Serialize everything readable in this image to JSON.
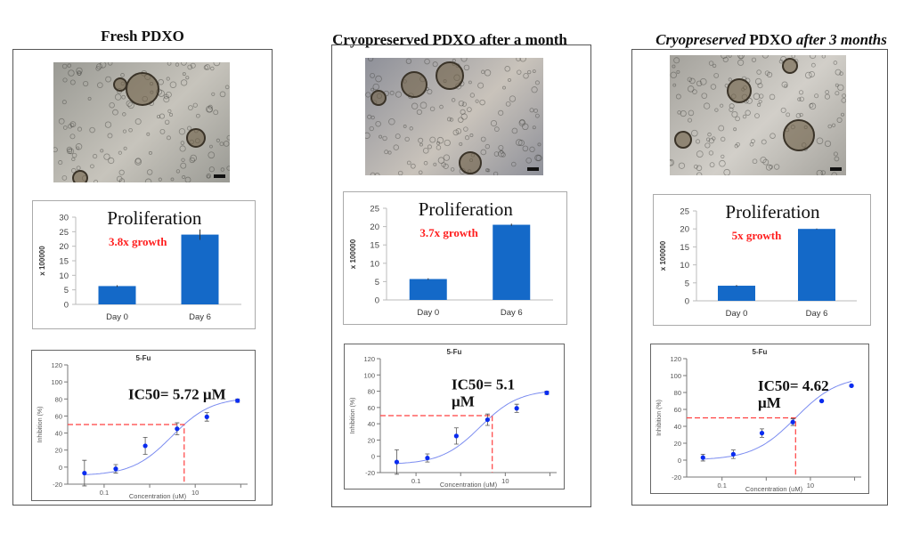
{
  "colors": {
    "bar": "#1469c8",
    "growth": "#ff2020",
    "dash": "#ff4040",
    "point": "#0a2cf0",
    "curve": "#7b8cf0"
  },
  "panels": [
    {
      "title_parts": [
        {
          "text": "Fresh PDXO",
          "italic": false
        }
      ],
      "micro_tint": [
        "#9a9a94",
        "#c7c4bc"
      ],
      "proliferation": {
        "type": "bar",
        "title": "Proliferation",
        "growth_label": "3.8x growth",
        "ylabel": "x 100000",
        "categories": [
          "Day 0",
          "Day 6"
        ],
        "values": [
          6.3,
          24
        ],
        "errors": [
          0.3,
          1.8
        ],
        "ylim": [
          0,
          30
        ],
        "yticks": [
          0,
          5,
          10,
          15,
          20,
          25,
          30
        ]
      },
      "ic50": {
        "type": "scatter",
        "title": "5-Fu",
        "xlabel": "Concentration (uM)",
        "ylabel": "Inhibition (%)",
        "label_lines": [
          "IC50= 5.72 µM"
        ],
        "ic50_value": 5.72,
        "x": [
          0.037,
          0.18,
          0.8,
          4,
          18,
          85
        ],
        "y": [
          -7,
          -2,
          25,
          45,
          59,
          78
        ],
        "errors": [
          15,
          5,
          10,
          7,
          5,
          2
        ],
        "fit": {
          "bottom": -10,
          "top": 82,
          "c": 3.05,
          "hill": 1
        },
        "xscale": "log",
        "xticklabels": [
          "0.1",
          "10"
        ],
        "ylim": [
          -20,
          120
        ],
        "yticks": [
          -20,
          0,
          20,
          40,
          60,
          80,
          100,
          120
        ]
      }
    },
    {
      "title_parts": [
        {
          "text": "Cryopreserved PDXO after a month",
          "italic": false
        }
      ],
      "micro_tint": [
        "#8e9099",
        "#c9c3bb"
      ],
      "proliferation": {
        "type": "bar",
        "title": "Proliferation",
        "growth_label": "3.7x growth",
        "ylabel": "x 100000",
        "categories": [
          "Day 0",
          "Day 6"
        ],
        "values": [
          5.7,
          20.5
        ],
        "errors": [
          0.2,
          0.3
        ],
        "ylim": [
          0,
          25
        ],
        "yticks": [
          0,
          5,
          10,
          15,
          20,
          25
        ]
      },
      "ic50": {
        "type": "scatter",
        "title": "5-Fu",
        "xlabel": "Concentration (uM)",
        "ylabel": "Inhibition (%)",
        "label_lines": [
          "IC50= 5.1",
          "µM"
        ],
        "ic50_value": 5.1,
        "x": [
          0.037,
          0.18,
          0.8,
          4,
          18,
          85
        ],
        "y": [
          -7,
          -2,
          25,
          45,
          59,
          78
        ],
        "errors": [
          15,
          5,
          10,
          7,
          5,
          2
        ],
        "fit": {
          "bottom": -10,
          "top": 82,
          "c": 2.72,
          "hill": 1
        },
        "xscale": "log",
        "xticklabels": [
          "0.1",
          "10"
        ],
        "ylim": [
          -20,
          120
        ],
        "yticks": [
          -20,
          0,
          20,
          40,
          60,
          80,
          100,
          120
        ]
      }
    },
    {
      "title_parts": [
        {
          "text": "Cryopreserved",
          "italic": true
        },
        {
          "text": " PDXO ",
          "italic": false
        },
        {
          "text": "after 3 months",
          "italic": true
        }
      ],
      "micro_tint": [
        "#a4a29c",
        "#d2cfc9"
      ],
      "proliferation": {
        "type": "bar",
        "title": "Proliferation",
        "growth_label": "5x growth",
        "ylabel": "x 100000",
        "categories": [
          "Day 0",
          "Day 6"
        ],
        "values": [
          4.2,
          20
        ],
        "errors": [
          0.2,
          0.1
        ],
        "ylim": [
          0,
          25
        ],
        "yticks": [
          0,
          5,
          10,
          15,
          20,
          25
        ]
      },
      "ic50": {
        "type": "scatter",
        "title": "5-Fu",
        "xlabel": "Concentration (uM)",
        "ylabel": "Inhibition (%)",
        "label_lines": [
          "IC50= 4.62",
          "µM"
        ],
        "ic50_value": 4.62,
        "x": [
          0.037,
          0.18,
          0.8,
          4,
          18,
          85
        ],
        "y": [
          3,
          7,
          32,
          45,
          70,
          88
        ],
        "errors": [
          4,
          5,
          5,
          4,
          1,
          1
        ],
        "fit": {
          "bottom": 0,
          "top": 100,
          "c": 4.62,
          "hill": 0.9
        },
        "xscale": "log",
        "xticklabels": [
          "0.1",
          "10"
        ],
        "ylim": [
          -20,
          120
        ],
        "yticks": [
          -20,
          0,
          20,
          40,
          60,
          80,
          100,
          120
        ]
      }
    }
  ]
}
